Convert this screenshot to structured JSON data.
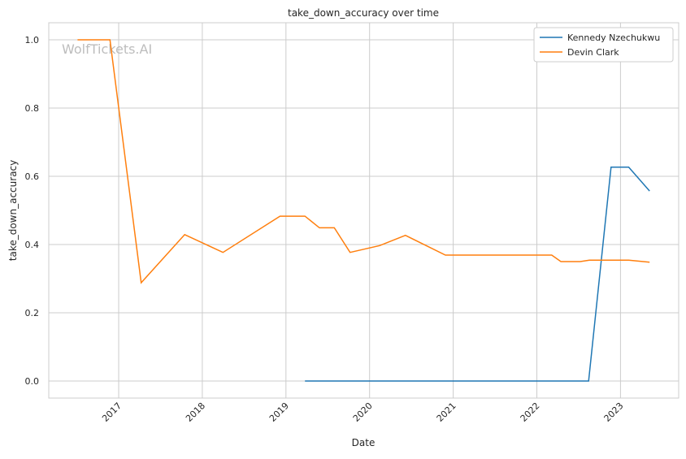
{
  "chart_data": {
    "type": "line",
    "title": "take_down_accuracy over time",
    "xlabel": "Date",
    "ylabel": "take_down_accuracy",
    "xlim": [
      "2016-03-01",
      "2023-09-12"
    ],
    "ylim": [
      -0.05,
      1.05
    ],
    "x_ticks": [
      "2017",
      "2018",
      "2019",
      "2020",
      "2021",
      "2022",
      "2023"
    ],
    "y_ticks": [
      "0.0",
      "0.2",
      "0.4",
      "0.6",
      "0.8",
      "1.0"
    ],
    "grid": true,
    "legend_position": "top-right",
    "watermark": "WolfTickets.AI",
    "series": [
      {
        "name": "Kennedy Nzechukwu",
        "color": "#1f77b4",
        "x": [
          "2019-03-25",
          "2022-08-15",
          "2022-11-21",
          "2023-02-06",
          "2023-05-08"
        ],
        "y": [
          0.0,
          0.0,
          0.627,
          0.627,
          0.557
        ]
      },
      {
        "name": "Devin Clark",
        "color": "#ff7f0e",
        "x": [
          "2016-07-05",
          "2016-11-24",
          "2017-04-09",
          "2017-10-16",
          "2018-04-01",
          "2018-12-06",
          "2019-03-25",
          "2019-05-27",
          "2019-07-31",
          "2019-10-08",
          "2020-02-14",
          "2020-06-06",
          "2020-11-28",
          "2022-03-07",
          "2022-04-16",
          "2022-07-09",
          "2022-08-18",
          "2023-02-06",
          "2023-05-08"
        ],
        "y": [
          1.0,
          1.0,
          0.288,
          0.429,
          0.377,
          0.483,
          0.483,
          0.449,
          0.449,
          0.377,
          0.397,
          0.427,
          0.369,
          0.369,
          0.35,
          0.35,
          0.354,
          0.354,
          0.348
        ]
      }
    ]
  }
}
